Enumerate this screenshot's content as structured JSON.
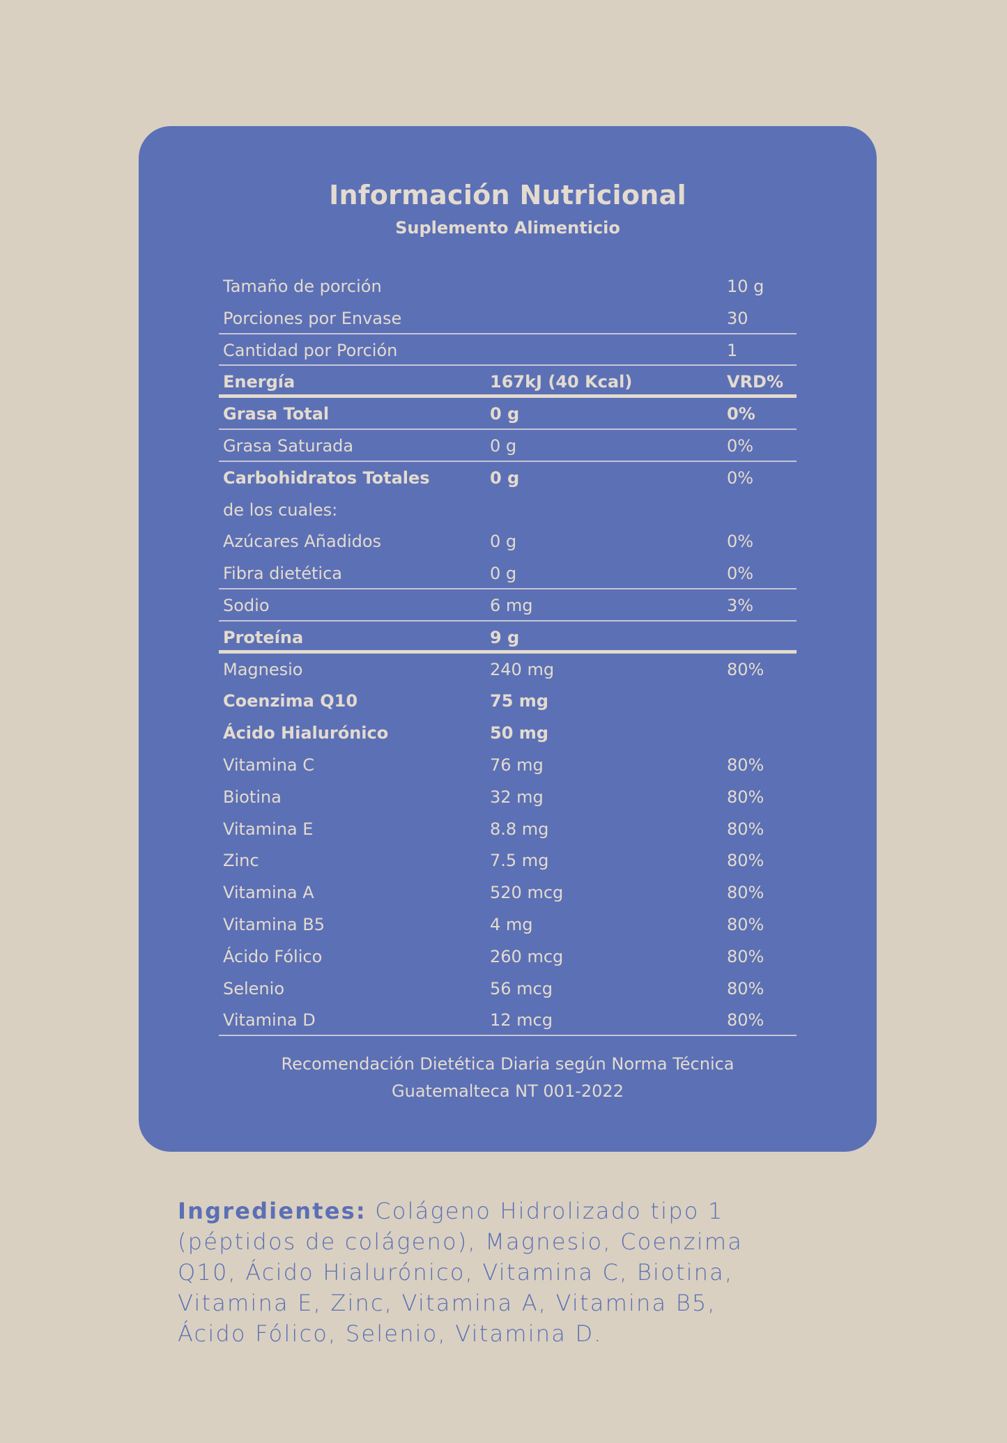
{
  "colors": {
    "background": "#d9d0c1",
    "card": "#5c70b5",
    "card_text": "#e3dbcf",
    "ingredients_text": "#5b6fb4"
  },
  "header": {
    "title": "Información Nutricional",
    "subtitle": "Suplemento Alimenticio"
  },
  "table": {
    "rows": [
      {
        "label": "Tamaño de porción",
        "amount": "",
        "vrd": "10 g",
        "bold": [
          false,
          false,
          false
        ]
      },
      {
        "label": "Porciones por Envase",
        "amount": "",
        "vrd": "30",
        "bold": [
          false,
          false,
          false
        ]
      },
      {
        "label": "Cantidad por Porción",
        "amount": "",
        "vrd": "1",
        "bold": [
          false,
          false,
          false
        ]
      },
      {
        "label": "Energía",
        "amount": "167kJ (40 Kcal)",
        "vrd": "VRD%",
        "bold": [
          true,
          true,
          true
        ]
      },
      {
        "label": "Grasa Total",
        "amount": "0 g",
        "vrd": "0%",
        "bold": [
          true,
          true,
          true
        ]
      },
      {
        "label": "Grasa Saturada",
        "amount": "0 g",
        "vrd": "0%",
        "bold": [
          false,
          false,
          false
        ]
      },
      {
        "label": "Carbohidratos Totales",
        "amount": "0 g",
        "vrd": "0%",
        "bold": [
          true,
          true,
          false
        ]
      },
      {
        "label": "de los cuales:",
        "amount": "",
        "vrd": "",
        "bold": [
          false,
          false,
          false
        ]
      },
      {
        "label": "Azúcares Añadidos",
        "amount": "0 g",
        "vrd": "0%",
        "bold": [
          false,
          false,
          false
        ]
      },
      {
        "label": "Fibra dietética",
        "amount": "0 g",
        "vrd": "0%",
        "bold": [
          false,
          false,
          false
        ]
      },
      {
        "label": "Sodio",
        "amount": "6 mg",
        "vrd": "3%",
        "bold": [
          false,
          false,
          false
        ]
      },
      {
        "label": "Proteína",
        "amount": "9 g",
        "vrd": "",
        "bold": [
          true,
          true,
          false
        ]
      },
      {
        "label": "Magnesio",
        "amount": "240 mg",
        "vrd": "80%",
        "bold": [
          false,
          false,
          false
        ]
      },
      {
        "label": "Coenzima Q10",
        "amount": "75 mg",
        "vrd": "",
        "bold": [
          true,
          true,
          false
        ]
      },
      {
        "label": "Ácido Hialurónico",
        "amount": "50 mg",
        "vrd": "",
        "bold": [
          true,
          true,
          false
        ]
      },
      {
        "label": "Vitamina C",
        "amount": "76 mg",
        "vrd": "80%",
        "bold": [
          false,
          false,
          false
        ]
      },
      {
        "label": "Biotina",
        "amount": "32 mg",
        "vrd": "80%",
        "bold": [
          false,
          false,
          false
        ]
      },
      {
        "label": "Vitamina E",
        "amount": "8.8 mg",
        "vrd": "80%",
        "bold": [
          false,
          false,
          false
        ]
      },
      {
        "label": "Zinc",
        "amount": "7.5 mg",
        "vrd": "80%",
        "bold": [
          false,
          false,
          false
        ]
      },
      {
        "label": "Vitamina A",
        "amount": "520 mcg",
        "vrd": "80%",
        "bold": [
          false,
          false,
          false
        ]
      },
      {
        "label": "Vitamina B5",
        "amount": "4 mg",
        "vrd": "80%",
        "bold": [
          false,
          false,
          false
        ]
      },
      {
        "label": "Ácido Fólico",
        "amount": "260 mcg",
        "vrd": "80%",
        "bold": [
          false,
          false,
          false
        ]
      },
      {
        "label": "Selenio",
        "amount": "56 mcg",
        "vrd": "80%",
        "bold": [
          false,
          false,
          false
        ]
      },
      {
        "label": "Vitamina D",
        "amount": "12 mcg",
        "vrd": "80%",
        "bold": [
          false,
          false,
          false
        ]
      }
    ]
  },
  "footnote": {
    "line1": "Recomendación Dietética Diaria según Norma Técnica",
    "line2": "Guatemalteca NT 001-2022"
  },
  "ingredients": {
    "label": "Ingredientes:",
    "lines": [
      "Colágeno Hidrolizado tipo 1",
      "(péptidos de colágeno), Magnesio, Coenzima",
      "Q10, Ácido Hialurónico, Vitamina C, Biotina,",
      "Vitamina E, Zinc, Vitamina A, Vitamina B5,",
      "Ácido Fólico, Selenio, Vitamina D."
    ]
  }
}
